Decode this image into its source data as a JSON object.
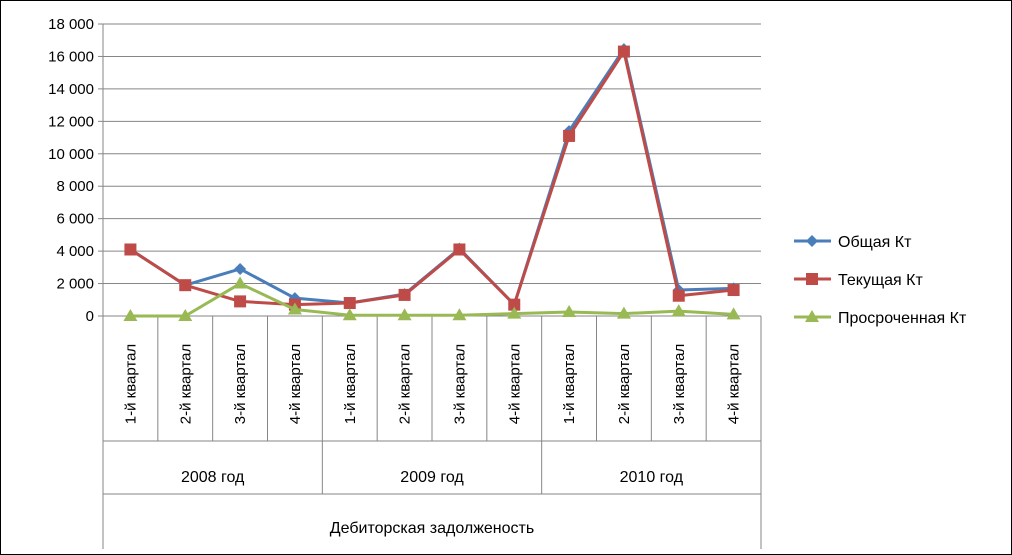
{
  "chart_data": {
    "type": "line",
    "title": "",
    "xlabel": "Дебиторская задолженость",
    "ylabel": "",
    "ylim": [
      0,
      18000
    ],
    "y_step": 2000,
    "y_tick_labels": [
      "0",
      "2 000",
      "4 000",
      "6 000",
      "8 000",
      "10 000",
      "12 000",
      "14 000",
      "16 000",
      "18 000"
    ],
    "grid": true,
    "legend_position": "right",
    "categories": [
      "1-й квартал",
      "2-й квартал",
      "3-й квартал",
      "4-й квартал",
      "1-й квартал",
      "2-й квартал",
      "3-й квартал",
      "4-й квартал",
      "1-й квартал",
      "2-й квартал",
      "3-й квартал",
      "4-й квартал"
    ],
    "groups": [
      {
        "label": "2008 год",
        "span": 4
      },
      {
        "label": "2009 год",
        "span": 4
      },
      {
        "label": "2010 год",
        "span": 4
      }
    ],
    "series": [
      {
        "name": "Общая Кт",
        "color": "#4a7ebb",
        "marker": "diamond",
        "values": [
          4100,
          1900,
          2900,
          1100,
          800,
          1350,
          4150,
          700,
          11400,
          16450,
          1600,
          1700
        ]
      },
      {
        "name": "Текущая Кт",
        "color": "#be4b48",
        "marker": "square",
        "values": [
          4100,
          1900,
          900,
          700,
          800,
          1300,
          4100,
          700,
          11100,
          16300,
          1250,
          1600
        ]
      },
      {
        "name": "Просроченная Кт",
        "color": "#98b954",
        "marker": "triangle",
        "values": [
          0,
          0,
          2000,
          400,
          50,
          50,
          50,
          150,
          250,
          150,
          300,
          100
        ]
      }
    ]
  }
}
